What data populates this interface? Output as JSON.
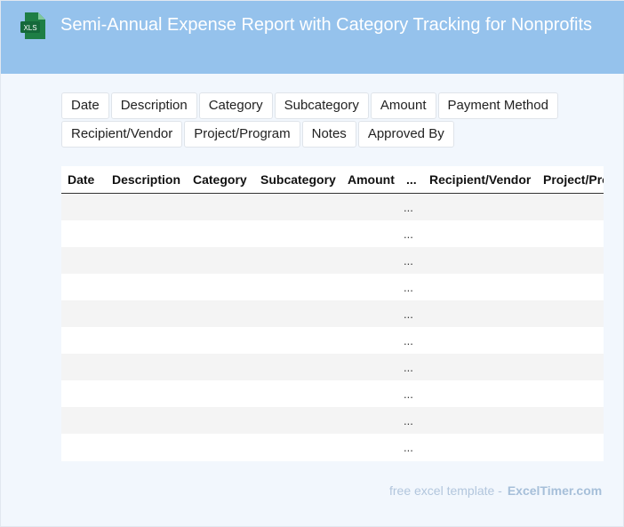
{
  "header": {
    "title": "Semi-Annual Expense Report with Category Tracking for Nonprofits",
    "icon": "xls-file-icon",
    "icon_label": "XLS",
    "background": "#95c2ec"
  },
  "fields": [
    "Date",
    "Description",
    "Category",
    "Subcategory",
    "Amount",
    "Payment Method",
    "Recipient/Vendor",
    "Project/Program",
    "Notes",
    "Approved By"
  ],
  "table": {
    "columns": [
      "Date",
      "Description",
      "Category",
      "Subcategory",
      "Amount",
      "...",
      "Recipient/Vendor",
      "Project/Program"
    ],
    "rows": [
      "...",
      "...",
      "...",
      "...",
      "...",
      "...",
      "...",
      "...",
      "...",
      "..."
    ]
  },
  "footer": {
    "text": "free excel template -",
    "brand": "ExcelTimer.com"
  }
}
